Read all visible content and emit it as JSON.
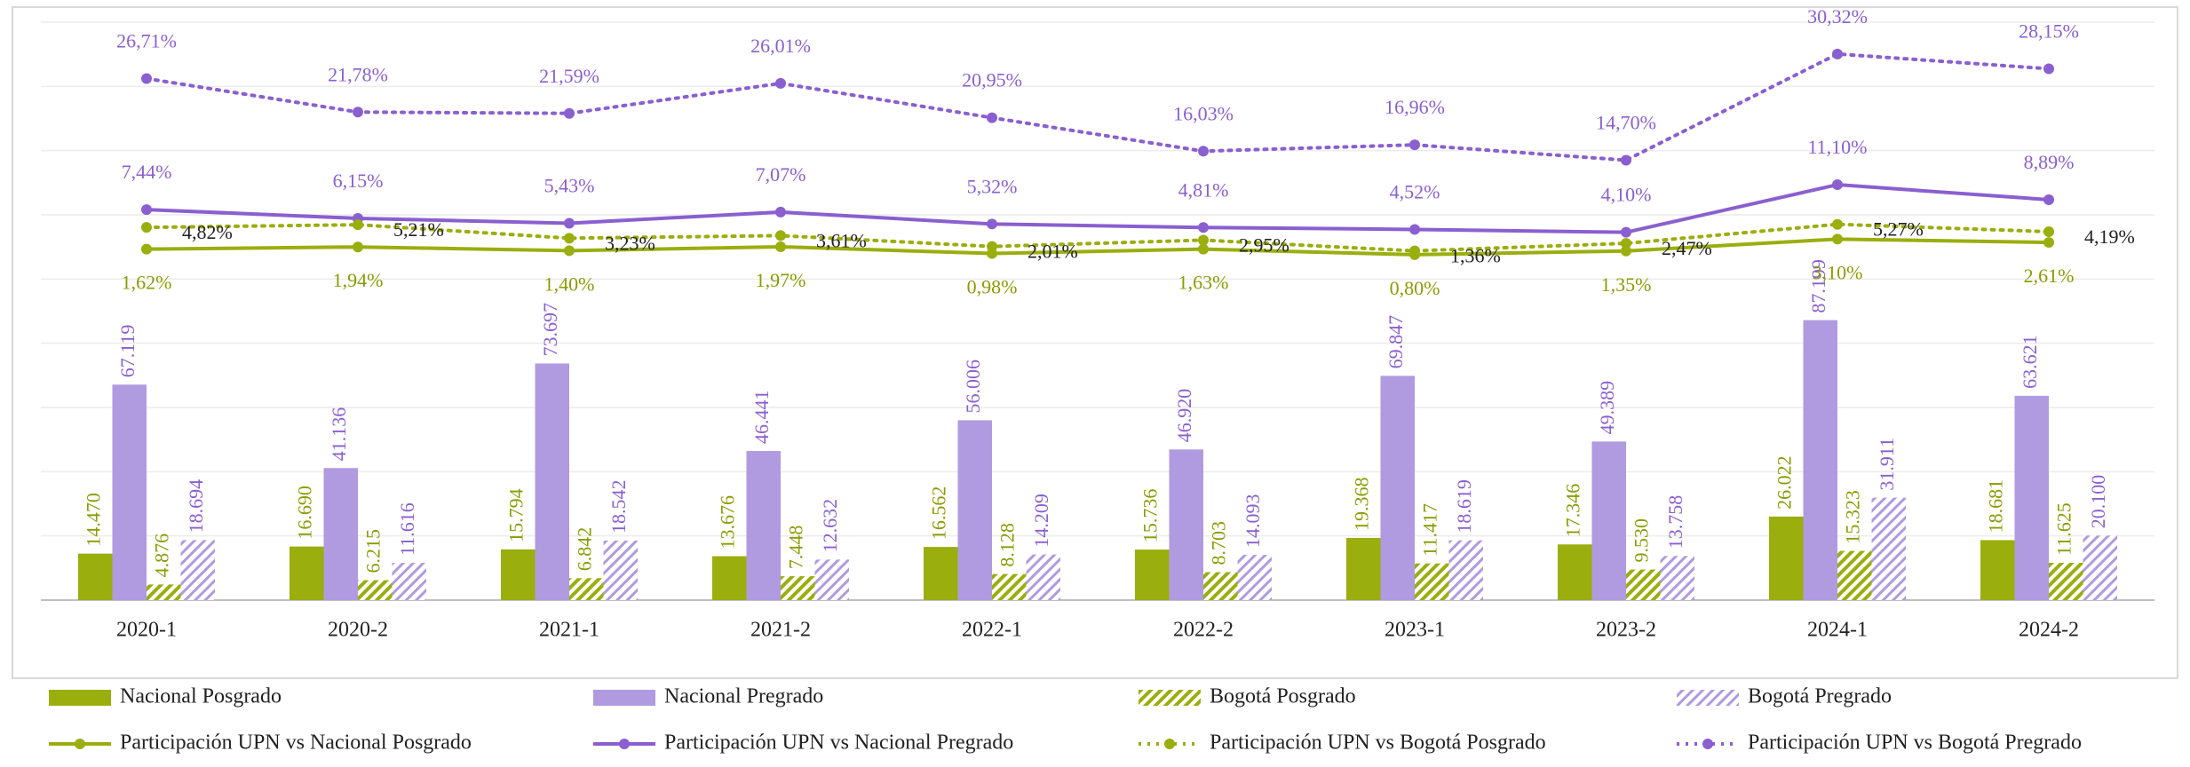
{
  "chart_data": {
    "type": "bar",
    "categories": [
      "2020-1",
      "2020-2",
      "2021-1",
      "2021-2",
      "2022-1",
      "2022-2",
      "2023-1",
      "2023-2",
      "2024-1",
      "2024-2"
    ],
    "ylim": [
      0,
      180000
    ],
    "yticks": [
      0,
      20000,
      40000,
      60000,
      80000,
      100000,
      120000,
      140000,
      160000,
      180000
    ],
    "y2lim": [
      -50,
      35
    ],
    "grid": true,
    "legend": "bottom",
    "series": [
      {
        "name": "Nacional Posgrado",
        "type": "bar",
        "color": "#9aae0e",
        "pattern": "solid",
        "values": [
          14470,
          16690,
          15794,
          13676,
          16562,
          15736,
          19368,
          17346,
          26022,
          18681
        ],
        "value_labels": [
          "14.470",
          "16.690",
          "15.794",
          "13.676",
          "16.562",
          "15.736",
          "19.368",
          "17.346",
          "26.022",
          "18.681"
        ]
      },
      {
        "name": "Nacional Pregrado",
        "type": "bar",
        "color": "#b09ae0",
        "pattern": "solid",
        "values": [
          67119,
          41136,
          73697,
          46441,
          56006,
          46920,
          69847,
          49389,
          87199,
          63621
        ],
        "value_labels": [
          "67.119",
          "41.136",
          "73.697",
          "46.441",
          "56.006",
          "46.920",
          "69.847",
          "49.389",
          "87.199",
          "63.621"
        ]
      },
      {
        "name": "Bogotá Posgrado",
        "type": "bar",
        "color": "#9aae0e",
        "pattern": "hatch",
        "values": [
          4876,
          6215,
          6842,
          7448,
          8128,
          8703,
          11417,
          9530,
          15323,
          11625
        ],
        "value_labels": [
          "4.876",
          "6.215",
          "6.842",
          "7.448",
          "8.128",
          "8.703",
          "11.417",
          "9.530",
          "15.323",
          "11.625"
        ]
      },
      {
        "name": "Bogotá Pregrado",
        "type": "bar",
        "color": "#b09ae0",
        "pattern": "hatch",
        "values": [
          18694,
          11616,
          18542,
          12632,
          14209,
          14093,
          18619,
          13758,
          31911,
          20100
        ],
        "value_labels": [
          "18.694",
          "11.616",
          "18.542",
          "12.632",
          "14.209",
          "14.093",
          "18.619",
          "13.758",
          "31.911",
          "20.100"
        ]
      },
      {
        "name": "Participación UPN vs Nacional Posgrado",
        "type": "line",
        "axis": "y2",
        "color": "#9aae0e",
        "dash": "solid",
        "label_color": "#8a9c00",
        "values": [
          1.62,
          1.94,
          1.4,
          1.97,
          0.98,
          1.63,
          0.8,
          1.35,
          3.1,
          2.61
        ],
        "value_labels": [
          "1,62%",
          "1,94%",
          "1,40%",
          "1,97%",
          "0,98%",
          "1,63%",
          "0,80%",
          "1,35%",
          "3,10%",
          "2,61%"
        ]
      },
      {
        "name": "Participación UPN vs Nacional Pregrado",
        "type": "line",
        "axis": "y2",
        "color": "#8a5fd0",
        "dash": "solid",
        "label_color": "#8a5fd0",
        "values": [
          7.44,
          6.15,
          5.43,
          7.07,
          5.32,
          4.81,
          4.52,
          4.1,
          11.1,
          8.89
        ],
        "value_labels": [
          "7,44%",
          "6,15%",
          "5,43%",
          "7,07%",
          "5,32%",
          "4,81%",
          "4,52%",
          "4,10%",
          "11,10%",
          "8,89%"
        ]
      },
      {
        "name": "Participación UPN vs Bogotá Posgrado",
        "type": "line",
        "axis": "y2",
        "color": "#9aae0e",
        "dash": "dotted",
        "label_color": "#222222",
        "values": [
          4.82,
          5.21,
          3.23,
          3.61,
          2.01,
          2.95,
          1.36,
          2.47,
          5.27,
          4.19
        ],
        "value_labels": [
          "4,82%",
          "5,21%",
          "3,23%",
          "3,61%",
          "2,01%",
          "2,95%",
          "1,36%",
          "2,47%",
          "5,27%",
          "4,19%"
        ]
      },
      {
        "name": "Participación UPN vs Bogotá Pregrado",
        "type": "line",
        "axis": "y2",
        "color": "#8a5fd0",
        "dash": "dotted",
        "label_color": "#8a5fd0",
        "values": [
          26.71,
          21.78,
          21.59,
          26.01,
          20.95,
          16.03,
          16.96,
          14.7,
          30.32,
          28.15
        ],
        "value_labels": [
          "26,71%",
          "21,78%",
          "21,59%",
          "26,01%",
          "20,95%",
          "16,03%",
          "16,96%",
          "14,70%",
          "30,32%",
          "28,15%"
        ]
      }
    ]
  }
}
